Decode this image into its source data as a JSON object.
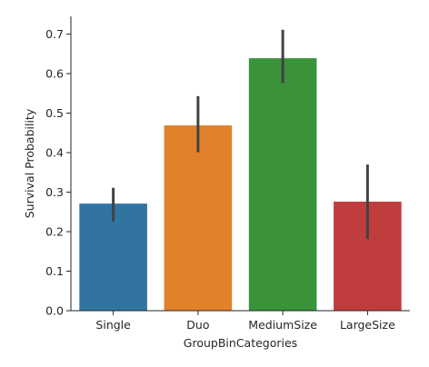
{
  "chart_data": {
    "type": "bar",
    "categories": [
      "Single",
      "Duo",
      "MediumSize",
      "LargeSize"
    ],
    "values": [
      0.271,
      0.469,
      0.639,
      0.276
    ],
    "error_bars": [
      [
        0.226,
        0.311
      ],
      [
        0.401,
        0.543
      ],
      [
        0.576,
        0.711
      ],
      [
        0.181,
        0.37
      ]
    ],
    "colors": [
      "#3274a1",
      "#e1812c",
      "#3a923a",
      "#c03d3e"
    ],
    "error_color": "#424242",
    "xlabel": "GroupBinCategories",
    "ylabel": "Survival Probability",
    "ylim": [
      0,
      0.745
    ],
    "yticks": [
      0.0,
      0.1,
      0.2,
      0.3,
      0.4,
      0.5,
      0.6,
      0.7
    ],
    "ytick_labels": [
      "0.0",
      "0.1",
      "0.2",
      "0.3",
      "0.4",
      "0.5",
      "0.6",
      "0.7"
    ],
    "grid": false,
    "spines": "left-bottom"
  }
}
